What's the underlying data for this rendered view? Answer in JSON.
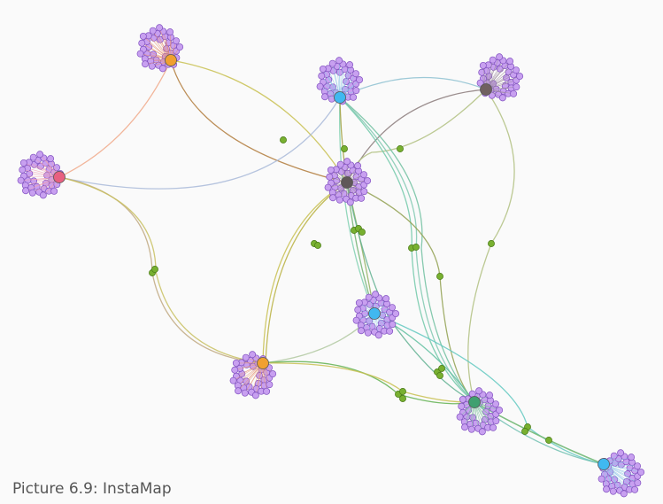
{
  "caption": "Picture 6.9: InstaMap"
}
